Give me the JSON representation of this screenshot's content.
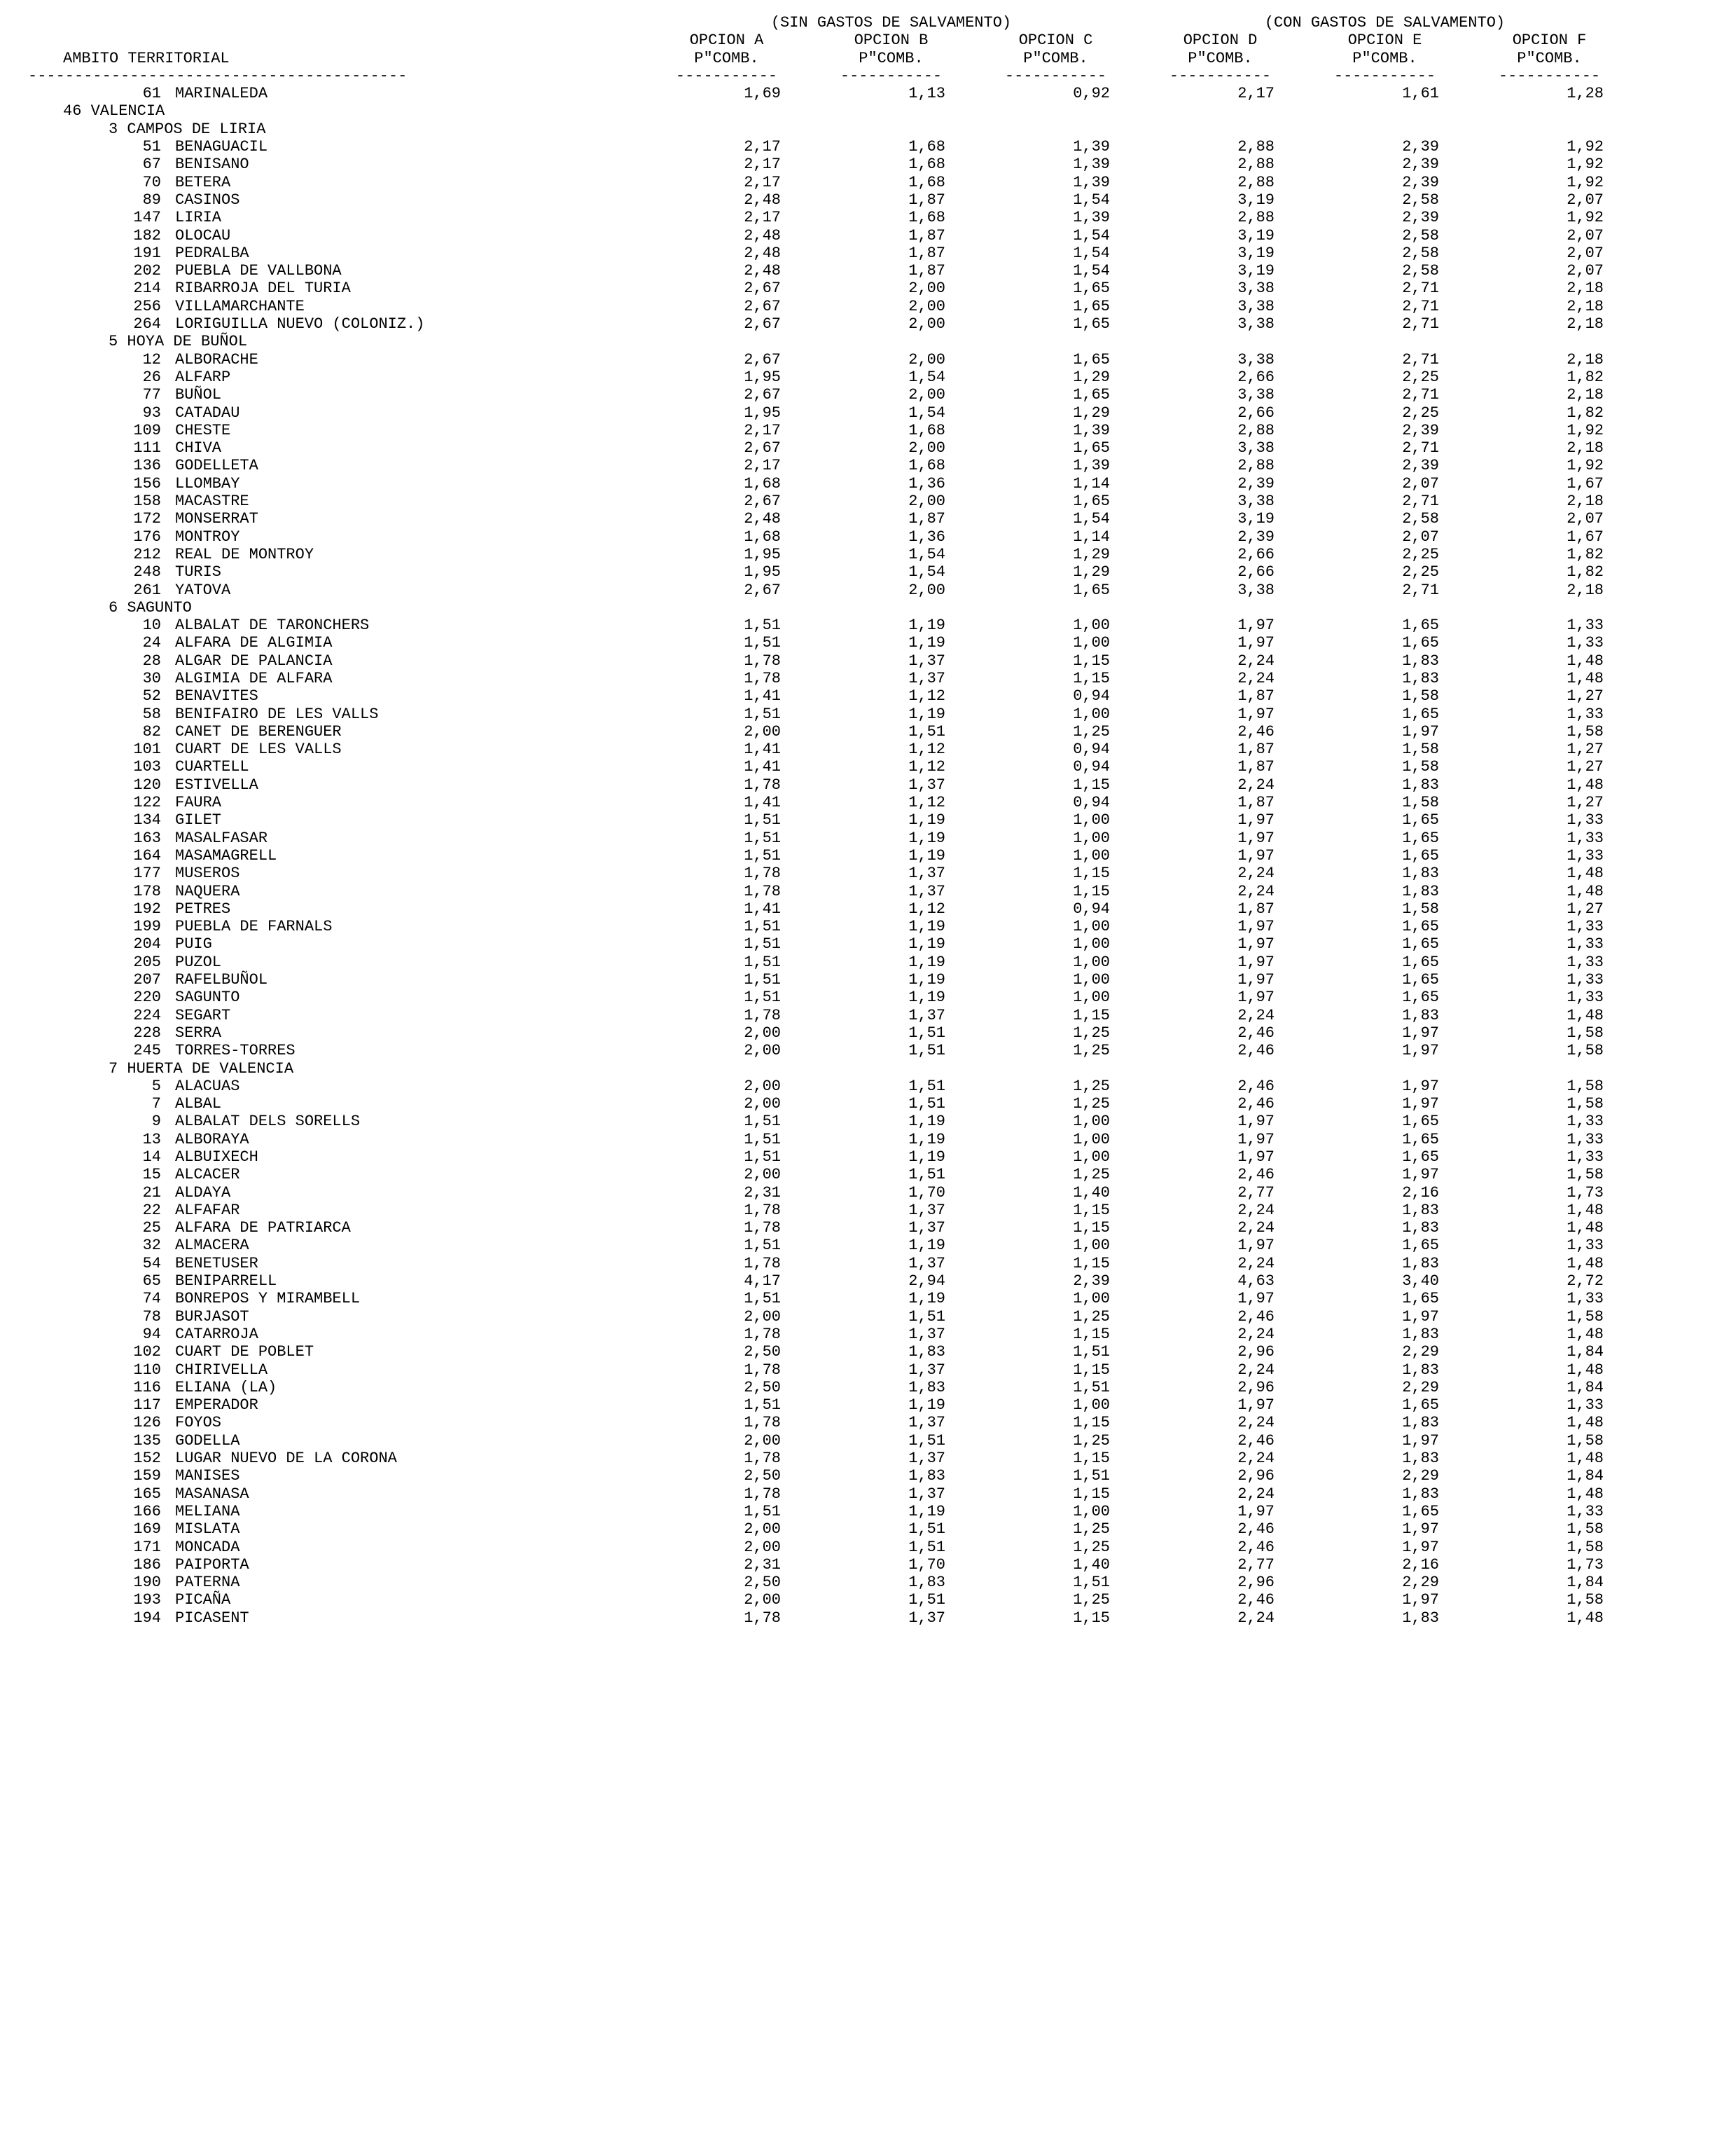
{
  "header": {
    "ambito": "AMBITO TERRITORIAL",
    "group_sin": "(SIN GASTOS DE SALVAMENTO)",
    "group_con": "(CON GASTOS DE SALVAMENTO)",
    "opts": [
      "OPCION A",
      "OPCION B",
      "OPCION C",
      "OPCION D",
      "OPCION E",
      "OPCION F"
    ],
    "pcomb": "P\"COMB.",
    "dash_ambito": "-----------------------------------------",
    "dash_col": "-----------"
  },
  "rows": [
    {
      "t": "data",
      "code": "61",
      "name": "MARINALEDA",
      "v": [
        "1,69",
        "1,13",
        "0,92",
        "2,17",
        "1,61",
        "1,28"
      ]
    },
    {
      "t": "prov",
      "label": "46 VALENCIA"
    },
    {
      "t": "com",
      "label": "3 CAMPOS DE LIRIA"
    },
    {
      "t": "data",
      "code": "51",
      "name": "BENAGUACIL",
      "v": [
        "2,17",
        "1,68",
        "1,39",
        "2,88",
        "2,39",
        "1,92"
      ]
    },
    {
      "t": "data",
      "code": "67",
      "name": "BENISANO",
      "v": [
        "2,17",
        "1,68",
        "1,39",
        "2,88",
        "2,39",
        "1,92"
      ]
    },
    {
      "t": "data",
      "code": "70",
      "name": "BETERA",
      "v": [
        "2,17",
        "1,68",
        "1,39",
        "2,88",
        "2,39",
        "1,92"
      ]
    },
    {
      "t": "data",
      "code": "89",
      "name": "CASINOS",
      "v": [
        "2,48",
        "1,87",
        "1,54",
        "3,19",
        "2,58",
        "2,07"
      ]
    },
    {
      "t": "data",
      "code": "147",
      "name": "LIRIA",
      "v": [
        "2,17",
        "1,68",
        "1,39",
        "2,88",
        "2,39",
        "1,92"
      ]
    },
    {
      "t": "data",
      "code": "182",
      "name": "OLOCAU",
      "v": [
        "2,48",
        "1,87",
        "1,54",
        "3,19",
        "2,58",
        "2,07"
      ]
    },
    {
      "t": "data",
      "code": "191",
      "name": "PEDRALBA",
      "v": [
        "2,48",
        "1,87",
        "1,54",
        "3,19",
        "2,58",
        "2,07"
      ]
    },
    {
      "t": "data",
      "code": "202",
      "name": "PUEBLA DE VALLBONA",
      "v": [
        "2,48",
        "1,87",
        "1,54",
        "3,19",
        "2,58",
        "2,07"
      ]
    },
    {
      "t": "data",
      "code": "214",
      "name": "RIBARROJA DEL TURIA",
      "v": [
        "2,67",
        "2,00",
        "1,65",
        "3,38",
        "2,71",
        "2,18"
      ]
    },
    {
      "t": "data",
      "code": "256",
      "name": "VILLAMARCHANTE",
      "v": [
        "2,67",
        "2,00",
        "1,65",
        "3,38",
        "2,71",
        "2,18"
      ]
    },
    {
      "t": "data",
      "code": "264",
      "name": "LORIGUILLA NUEVO (COLONIZ.)",
      "v": [
        "2,67",
        "2,00",
        "1,65",
        "3,38",
        "2,71",
        "2,18"
      ]
    },
    {
      "t": "com",
      "label": "5 HOYA DE BUÑOL"
    },
    {
      "t": "data",
      "code": "12",
      "name": "ALBORACHE",
      "v": [
        "2,67",
        "2,00",
        "1,65",
        "3,38",
        "2,71",
        "2,18"
      ]
    },
    {
      "t": "data",
      "code": "26",
      "name": "ALFARP",
      "v": [
        "1,95",
        "1,54",
        "1,29",
        "2,66",
        "2,25",
        "1,82"
      ]
    },
    {
      "t": "data",
      "code": "77",
      "name": "BUÑOL",
      "v": [
        "2,67",
        "2,00",
        "1,65",
        "3,38",
        "2,71",
        "2,18"
      ]
    },
    {
      "t": "data",
      "code": "93",
      "name": "CATADAU",
      "v": [
        "1,95",
        "1,54",
        "1,29",
        "2,66",
        "2,25",
        "1,82"
      ]
    },
    {
      "t": "data",
      "code": "109",
      "name": "CHESTE",
      "v": [
        "2,17",
        "1,68",
        "1,39",
        "2,88",
        "2,39",
        "1,92"
      ]
    },
    {
      "t": "data",
      "code": "111",
      "name": "CHIVA",
      "v": [
        "2,67",
        "2,00",
        "1,65",
        "3,38",
        "2,71",
        "2,18"
      ]
    },
    {
      "t": "data",
      "code": "136",
      "name": "GODELLETA",
      "v": [
        "2,17",
        "1,68",
        "1,39",
        "2,88",
        "2,39",
        "1,92"
      ]
    },
    {
      "t": "data",
      "code": "156",
      "name": "LLOMBAY",
      "v": [
        "1,68",
        "1,36",
        "1,14",
        "2,39",
        "2,07",
        "1,67"
      ]
    },
    {
      "t": "data",
      "code": "158",
      "name": "MACASTRE",
      "v": [
        "2,67",
        "2,00",
        "1,65",
        "3,38",
        "2,71",
        "2,18"
      ]
    },
    {
      "t": "data",
      "code": "172",
      "name": "MONSERRAT",
      "v": [
        "2,48",
        "1,87",
        "1,54",
        "3,19",
        "2,58",
        "2,07"
      ]
    },
    {
      "t": "data",
      "code": "176",
      "name": "MONTROY",
      "v": [
        "1,68",
        "1,36",
        "1,14",
        "2,39",
        "2,07",
        "1,67"
      ]
    },
    {
      "t": "data",
      "code": "212",
      "name": "REAL DE MONTROY",
      "v": [
        "1,95",
        "1,54",
        "1,29",
        "2,66",
        "2,25",
        "1,82"
      ]
    },
    {
      "t": "data",
      "code": "248",
      "name": "TURIS",
      "v": [
        "1,95",
        "1,54",
        "1,29",
        "2,66",
        "2,25",
        "1,82"
      ]
    },
    {
      "t": "data",
      "code": "261",
      "name": "YATOVA",
      "v": [
        "2,67",
        "2,00",
        "1,65",
        "3,38",
        "2,71",
        "2,18"
      ]
    },
    {
      "t": "com",
      "label": "6 SAGUNTO"
    },
    {
      "t": "data",
      "code": "10",
      "name": "ALBALAT DE TARONCHERS",
      "v": [
        "1,51",
        "1,19",
        "1,00",
        "1,97",
        "1,65",
        "1,33"
      ]
    },
    {
      "t": "data",
      "code": "24",
      "name": "ALFARA DE ALGIMIA",
      "v": [
        "1,51",
        "1,19",
        "1,00",
        "1,97",
        "1,65",
        "1,33"
      ]
    },
    {
      "t": "data",
      "code": "28",
      "name": "ALGAR DE PALANCIA",
      "v": [
        "1,78",
        "1,37",
        "1,15",
        "2,24",
        "1,83",
        "1,48"
      ]
    },
    {
      "t": "data",
      "code": "30",
      "name": "ALGIMIA DE ALFARA",
      "v": [
        "1,78",
        "1,37",
        "1,15",
        "2,24",
        "1,83",
        "1,48"
      ]
    },
    {
      "t": "data",
      "code": "52",
      "name": "BENAVITES",
      "v": [
        "1,41",
        "1,12",
        "0,94",
        "1,87",
        "1,58",
        "1,27"
      ]
    },
    {
      "t": "data",
      "code": "58",
      "name": "BENIFAIRO DE LES VALLS",
      "v": [
        "1,51",
        "1,19",
        "1,00",
        "1,97",
        "1,65",
        "1,33"
      ]
    },
    {
      "t": "data",
      "code": "82",
      "name": "CANET DE BERENGUER",
      "v": [
        "2,00",
        "1,51",
        "1,25",
        "2,46",
        "1,97",
        "1,58"
      ]
    },
    {
      "t": "data",
      "code": "101",
      "name": "CUART DE LES VALLS",
      "v": [
        "1,41",
        "1,12",
        "0,94",
        "1,87",
        "1,58",
        "1,27"
      ]
    },
    {
      "t": "data",
      "code": "103",
      "name": "CUARTELL",
      "v": [
        "1,41",
        "1,12",
        "0,94",
        "1,87",
        "1,58",
        "1,27"
      ]
    },
    {
      "t": "data",
      "code": "120",
      "name": "ESTIVELLA",
      "v": [
        "1,78",
        "1,37",
        "1,15",
        "2,24",
        "1,83",
        "1,48"
      ]
    },
    {
      "t": "data",
      "code": "122",
      "name": "FAURA",
      "v": [
        "1,41",
        "1,12",
        "0,94",
        "1,87",
        "1,58",
        "1,27"
      ]
    },
    {
      "t": "data",
      "code": "134",
      "name": "GILET",
      "v": [
        "1,51",
        "1,19",
        "1,00",
        "1,97",
        "1,65",
        "1,33"
      ]
    },
    {
      "t": "data",
      "code": "163",
      "name": "MASALFASAR",
      "v": [
        "1,51",
        "1,19",
        "1,00",
        "1,97",
        "1,65",
        "1,33"
      ]
    },
    {
      "t": "data",
      "code": "164",
      "name": "MASAMAGRELL",
      "v": [
        "1,51",
        "1,19",
        "1,00",
        "1,97",
        "1,65",
        "1,33"
      ]
    },
    {
      "t": "data",
      "code": "177",
      "name": "MUSEROS",
      "v": [
        "1,78",
        "1,37",
        "1,15",
        "2,24",
        "1,83",
        "1,48"
      ]
    },
    {
      "t": "data",
      "code": "178",
      "name": "NAQUERA",
      "v": [
        "1,78",
        "1,37",
        "1,15",
        "2,24",
        "1,83",
        "1,48"
      ]
    },
    {
      "t": "data",
      "code": "192",
      "name": "PETRES",
      "v": [
        "1,41",
        "1,12",
        "0,94",
        "1,87",
        "1,58",
        "1,27"
      ]
    },
    {
      "t": "data",
      "code": "199",
      "name": "PUEBLA DE FARNALS",
      "v": [
        "1,51",
        "1,19",
        "1,00",
        "1,97",
        "1,65",
        "1,33"
      ]
    },
    {
      "t": "data",
      "code": "204",
      "name": "PUIG",
      "v": [
        "1,51",
        "1,19",
        "1,00",
        "1,97",
        "1,65",
        "1,33"
      ]
    },
    {
      "t": "data",
      "code": "205",
      "name": "PUZOL",
      "v": [
        "1,51",
        "1,19",
        "1,00",
        "1,97",
        "1,65",
        "1,33"
      ]
    },
    {
      "t": "data",
      "code": "207",
      "name": "RAFELBUÑOL",
      "v": [
        "1,51",
        "1,19",
        "1,00",
        "1,97",
        "1,65",
        "1,33"
      ]
    },
    {
      "t": "data",
      "code": "220",
      "name": "SAGUNTO",
      "v": [
        "1,51",
        "1,19",
        "1,00",
        "1,97",
        "1,65",
        "1,33"
      ]
    },
    {
      "t": "data",
      "code": "224",
      "name": "SEGART",
      "v": [
        "1,78",
        "1,37",
        "1,15",
        "2,24",
        "1,83",
        "1,48"
      ]
    },
    {
      "t": "data",
      "code": "228",
      "name": "SERRA",
      "v": [
        "2,00",
        "1,51",
        "1,25",
        "2,46",
        "1,97",
        "1,58"
      ]
    },
    {
      "t": "data",
      "code": "245",
      "name": "TORRES-TORRES",
      "v": [
        "2,00",
        "1,51",
        "1,25",
        "2,46",
        "1,97",
        "1,58"
      ]
    },
    {
      "t": "com",
      "label": "7 HUERTA DE VALENCIA"
    },
    {
      "t": "data",
      "code": "5",
      "name": "ALACUAS",
      "v": [
        "2,00",
        "1,51",
        "1,25",
        "2,46",
        "1,97",
        "1,58"
      ]
    },
    {
      "t": "data",
      "code": "7",
      "name": "ALBAL",
      "v": [
        "2,00",
        "1,51",
        "1,25",
        "2,46",
        "1,97",
        "1,58"
      ]
    },
    {
      "t": "data",
      "code": "9",
      "name": "ALBALAT DELS SORELLS",
      "v": [
        "1,51",
        "1,19",
        "1,00",
        "1,97",
        "1,65",
        "1,33"
      ]
    },
    {
      "t": "data",
      "code": "13",
      "name": "ALBORAYA",
      "v": [
        "1,51",
        "1,19",
        "1,00",
        "1,97",
        "1,65",
        "1,33"
      ]
    },
    {
      "t": "data",
      "code": "14",
      "name": "ALBUIXECH",
      "v": [
        "1,51",
        "1,19",
        "1,00",
        "1,97",
        "1,65",
        "1,33"
      ]
    },
    {
      "t": "data",
      "code": "15",
      "name": "ALCACER",
      "v": [
        "2,00",
        "1,51",
        "1,25",
        "2,46",
        "1,97",
        "1,58"
      ]
    },
    {
      "t": "data",
      "code": "21",
      "name": "ALDAYA",
      "v": [
        "2,31",
        "1,70",
        "1,40",
        "2,77",
        "2,16",
        "1,73"
      ]
    },
    {
      "t": "data",
      "code": "22",
      "name": "ALFAFAR",
      "v": [
        "1,78",
        "1,37",
        "1,15",
        "2,24",
        "1,83",
        "1,48"
      ]
    },
    {
      "t": "data",
      "code": "25",
      "name": "ALFARA DE PATRIARCA",
      "v": [
        "1,78",
        "1,37",
        "1,15",
        "2,24",
        "1,83",
        "1,48"
      ]
    },
    {
      "t": "data",
      "code": "32",
      "name": "ALMACERA",
      "v": [
        "1,51",
        "1,19",
        "1,00",
        "1,97",
        "1,65",
        "1,33"
      ]
    },
    {
      "t": "data",
      "code": "54",
      "name": "BENETUSER",
      "v": [
        "1,78",
        "1,37",
        "1,15",
        "2,24",
        "1,83",
        "1,48"
      ]
    },
    {
      "t": "data",
      "code": "65",
      "name": "BENIPARRELL",
      "v": [
        "4,17",
        "2,94",
        "2,39",
        "4,63",
        "3,40",
        "2,72"
      ]
    },
    {
      "t": "data",
      "code": "74",
      "name": "BONREPOS Y MIRAMBELL",
      "v": [
        "1,51",
        "1,19",
        "1,00",
        "1,97",
        "1,65",
        "1,33"
      ]
    },
    {
      "t": "data",
      "code": "78",
      "name": "BURJASOT",
      "v": [
        "2,00",
        "1,51",
        "1,25",
        "2,46",
        "1,97",
        "1,58"
      ]
    },
    {
      "t": "data",
      "code": "94",
      "name": "CATARROJA",
      "v": [
        "1,78",
        "1,37",
        "1,15",
        "2,24",
        "1,83",
        "1,48"
      ]
    },
    {
      "t": "data",
      "code": "102",
      "name": "CUART DE POBLET",
      "v": [
        "2,50",
        "1,83",
        "1,51",
        "2,96",
        "2,29",
        "1,84"
      ]
    },
    {
      "t": "data",
      "code": "110",
      "name": "CHIRIVELLA",
      "v": [
        "1,78",
        "1,37",
        "1,15",
        "2,24",
        "1,83",
        "1,48"
      ]
    },
    {
      "t": "data",
      "code": "116",
      "name": "ELIANA (LA)",
      "v": [
        "2,50",
        "1,83",
        "1,51",
        "2,96",
        "2,29",
        "1,84"
      ]
    },
    {
      "t": "data",
      "code": "117",
      "name": "EMPERADOR",
      "v": [
        "1,51",
        "1,19",
        "1,00",
        "1,97",
        "1,65",
        "1,33"
      ]
    },
    {
      "t": "data",
      "code": "126",
      "name": "FOYOS",
      "v": [
        "1,78",
        "1,37",
        "1,15",
        "2,24",
        "1,83",
        "1,48"
      ]
    },
    {
      "t": "data",
      "code": "135",
      "name": "GODELLA",
      "v": [
        "2,00",
        "1,51",
        "1,25",
        "2,46",
        "1,97",
        "1,58"
      ]
    },
    {
      "t": "data",
      "code": "152",
      "name": "LUGAR NUEVO DE LA CORONA",
      "v": [
        "1,78",
        "1,37",
        "1,15",
        "2,24",
        "1,83",
        "1,48"
      ]
    },
    {
      "t": "data",
      "code": "159",
      "name": "MANISES",
      "v": [
        "2,50",
        "1,83",
        "1,51",
        "2,96",
        "2,29",
        "1,84"
      ]
    },
    {
      "t": "data",
      "code": "165",
      "name": "MASANASA",
      "v": [
        "1,78",
        "1,37",
        "1,15",
        "2,24",
        "1,83",
        "1,48"
      ]
    },
    {
      "t": "data",
      "code": "166",
      "name": "MELIANA",
      "v": [
        "1,51",
        "1,19",
        "1,00",
        "1,97",
        "1,65",
        "1,33"
      ]
    },
    {
      "t": "data",
      "code": "169",
      "name": "MISLATA",
      "v": [
        "2,00",
        "1,51",
        "1,25",
        "2,46",
        "1,97",
        "1,58"
      ]
    },
    {
      "t": "data",
      "code": "171",
      "name": "MONCADA",
      "v": [
        "2,00",
        "1,51",
        "1,25",
        "2,46",
        "1,97",
        "1,58"
      ]
    },
    {
      "t": "data",
      "code": "186",
      "name": "PAIPORTA",
      "v": [
        "2,31",
        "1,70",
        "1,40",
        "2,77",
        "2,16",
        "1,73"
      ]
    },
    {
      "t": "data",
      "code": "190",
      "name": "PATERNA",
      "v": [
        "2,50",
        "1,83",
        "1,51",
        "2,96",
        "2,29",
        "1,84"
      ]
    },
    {
      "t": "data",
      "code": "193",
      "name": "PICAÑA",
      "v": [
        "2,00",
        "1,51",
        "1,25",
        "2,46",
        "1,97",
        "1,58"
      ]
    },
    {
      "t": "data",
      "code": "194",
      "name": "PICASENT",
      "v": [
        "1,78",
        "1,37",
        "1,15",
        "2,24",
        "1,83",
        "1,48"
      ]
    }
  ]
}
